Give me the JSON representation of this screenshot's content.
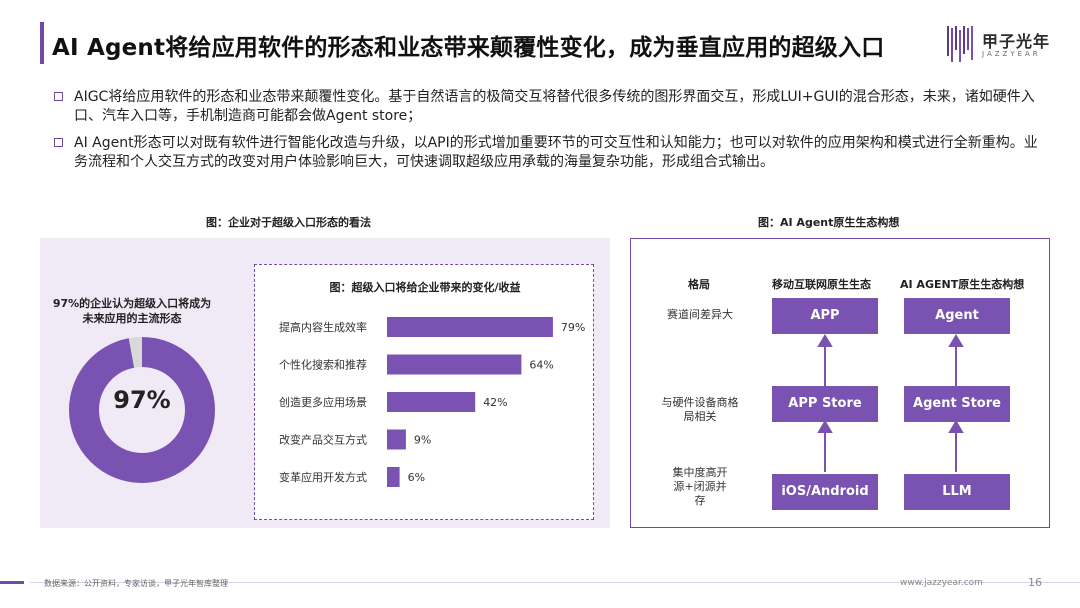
{
  "header": {
    "title": "AI Agent将给应用软件的形态和业态带来颠覆性变化，成为垂直应用的超级入口",
    "logo_text": "甲子光年",
    "logo_sub": "JAZZYEAR"
  },
  "bullets": [
    "AIGC将给应用软件的形态和业态带来颠覆性变化。基于自然语言的极简交互将替代很多传统的图形界面交互，形成LUI+GUI的混合形态，未来，诸如硬件入口、汽车入口等，手机制造商可能都会做Agent store；",
    "AI Agent形态可以对既有软件进行智能化改造与升级，以API的形式增加重要环节的可交互性和认知能力；也可以对软件的应用架构和模式进行全新重构。业务流程和个人交互方式的改变对用户体验影响巨大，可快速调取超级应用承载的海量复杂功能，形成组合式输出。"
  ],
  "left_figure": {
    "caption": "图：企业对于超级入口形态的看法",
    "donut_caption": "97%的企业认为超级入口将成为未来应用的主流形态",
    "donut_label": "97%"
  },
  "right_figure": {
    "caption": "图：AI Agent原生生态构想",
    "headers": [
      "格局",
      "移动互联网原生生态",
      "AI AGENT原生生态构想"
    ],
    "rows": [
      "赛道间差异大",
      "与硬件设备商格局相关",
      "集中度高开源+闭源并存"
    ],
    "mobile_boxes": [
      "APP",
      "APP Store",
      "iOS/Android"
    ],
    "agent_boxes": [
      "Agent",
      "Agent Store",
      "LLM"
    ]
  },
  "colors": {
    "accent": "#6f4aa6",
    "bar": "#7a52b2",
    "donut_rest": "#d9d9d9"
  },
  "chart_data": [
    {
      "type": "pie",
      "categories": [
        "认为超级入口将成为主流形态",
        "其他"
      ],
      "values": [
        97,
        3
      ]
    },
    {
      "type": "bar",
      "title": "图：超级入口将给企业带来的变化/收益",
      "categories": [
        "提高内容生成效率",
        "个性化搜索和推荐",
        "创造更多应用场景",
        "改变产品交互方式",
        "变革应用开发方式"
      ],
      "values": [
        79,
        64,
        42,
        9,
        6
      ],
      "value_labels": [
        "79%",
        "64%",
        "42%",
        "9%",
        "6%"
      ],
      "xlim": [
        0,
        100
      ]
    }
  ],
  "footer": {
    "source": "数据来源：公开资料，专家访谈，甲子光年智库整理",
    "site": "www.jazzyear.com",
    "page": "16"
  }
}
